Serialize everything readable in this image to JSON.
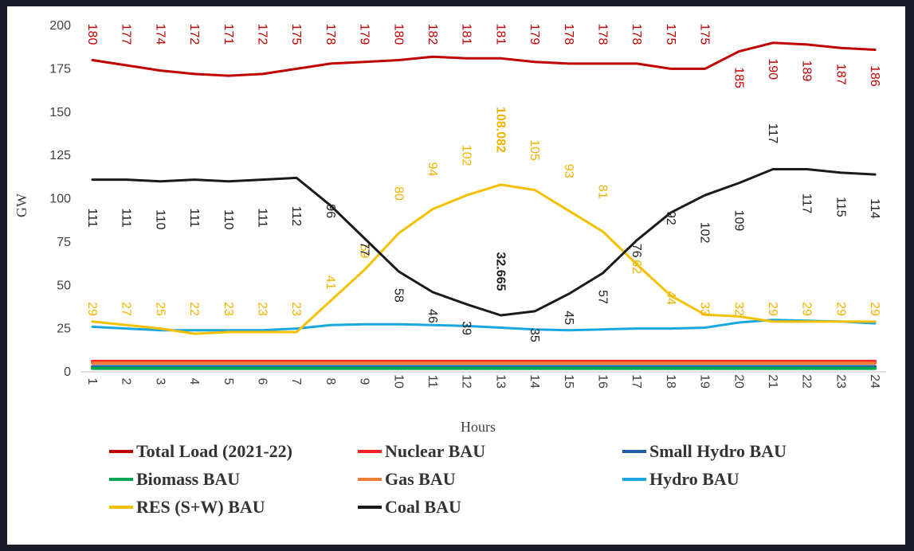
{
  "chart_data": {
    "type": "line",
    "title": "",
    "xlabel": "Hours",
    "ylabel": "GW",
    "ylim": [
      0,
      200
    ],
    "yticks": [
      0,
      25,
      50,
      75,
      100,
      125,
      150,
      175,
      200
    ],
    "categories": [
      "1",
      "2",
      "3",
      "4",
      "5",
      "6",
      "7",
      "8",
      "9",
      "10",
      "11",
      "12",
      "13",
      "14",
      "15",
      "16",
      "17",
      "18",
      "19",
      "20",
      "21",
      "22",
      "23",
      "24"
    ],
    "grid": false,
    "legend_position": "bottom",
    "series": [
      {
        "key": "total",
        "name": "Total Load (2021-22)",
        "color": "#c00000",
        "label_color": "#c00000",
        "values": [
          180,
          177,
          174,
          172,
          171,
          172,
          175,
          178,
          179,
          180,
          182,
          181,
          181,
          179,
          178,
          178,
          178,
          175,
          175,
          185,
          190,
          189,
          187,
          186
        ],
        "data_labels": [
          "180",
          "177",
          "174",
          "172",
          "171",
          "172",
          "175",
          "178",
          "179",
          "180",
          "182",
          "181",
          "181",
          "179",
          "178",
          "178",
          "178",
          "175",
          "175",
          "185",
          "190",
          "189",
          "187",
          "186"
        ]
      },
      {
        "key": "nuclear",
        "name": "Nuclear BAU",
        "color": "#ff2020",
        "values": [
          6,
          6,
          6,
          6,
          6,
          6,
          6,
          6,
          6,
          6,
          6,
          6,
          6,
          6,
          6,
          6,
          6,
          6,
          6,
          6,
          6,
          6,
          6,
          6
        ]
      },
      {
        "key": "smallhydro",
        "name": "Small Hydro BAU",
        "color": "#1f5fa8",
        "values": [
          3,
          3,
          3,
          3,
          3,
          3,
          3,
          3,
          3,
          3,
          3,
          3,
          3,
          3,
          3,
          3,
          3,
          3,
          3,
          3,
          3,
          3,
          3,
          3
        ]
      },
      {
        "key": "biomass",
        "name": "Biomass BAU",
        "color": "#00a651",
        "values": [
          2,
          2,
          2,
          2,
          2,
          2,
          2,
          2,
          2,
          2,
          2,
          2,
          2,
          2,
          2,
          2,
          2,
          2,
          2,
          2,
          2,
          2,
          2,
          2
        ]
      },
      {
        "key": "gas",
        "name": "Gas BAU",
        "color": "#f07c3a",
        "values": [
          5,
          5,
          5,
          5,
          5,
          5,
          5,
          5,
          5,
          5,
          5,
          5,
          5,
          5,
          5,
          5,
          5,
          5,
          5,
          5,
          5,
          5,
          5,
          5
        ]
      },
      {
        "key": "hydro",
        "name": "Hydro BAU",
        "color": "#1aa7e0",
        "values": [
          26,
          25,
          24,
          24,
          24,
          24,
          25,
          27,
          27.5,
          27.5,
          27,
          26.5,
          25.5,
          24.5,
          24,
          24.5,
          25,
          25,
          25.5,
          28.5,
          30,
          29.5,
          29,
          28
        ]
      },
      {
        "key": "res",
        "name": "RES (S+W) BAU",
        "color": "#f5c000",
        "label_color": "#f0b400",
        "values": [
          29,
          27,
          25,
          22,
          23,
          23,
          23,
          41,
          59,
          80,
          94,
          102,
          108.082,
          105,
          93,
          81,
          62,
          44,
          33,
          32,
          29,
          29,
          29,
          29
        ],
        "data_labels": [
          "29",
          "27",
          "25",
          "22",
          "23",
          "23",
          "23",
          "41",
          "59",
          "80",
          "94",
          "102",
          "108.082",
          "105",
          "93",
          "81",
          "62",
          "44",
          "33",
          "32",
          "29",
          "29",
          "29",
          "29"
        ]
      },
      {
        "key": "coal",
        "name": "Coal BAU",
        "color": "#1a1a1a",
        "label_color": "#222222",
        "values": [
          111,
          111,
          110,
          111,
          110,
          111,
          112,
          96,
          77,
          58,
          46,
          39,
          32.665,
          35,
          45,
          57,
          76,
          92,
          102,
          109,
          117,
          117,
          115,
          114
        ],
        "data_labels": [
          "111",
          "111",
          "110",
          "111",
          "110",
          "111",
          "112",
          "96",
          "77",
          "58",
          "46",
          "39",
          "32.665",
          "35",
          "45",
          "57",
          "76",
          "92",
          "102",
          "109",
          "117",
          "117",
          "115",
          "114"
        ]
      }
    ]
  }
}
